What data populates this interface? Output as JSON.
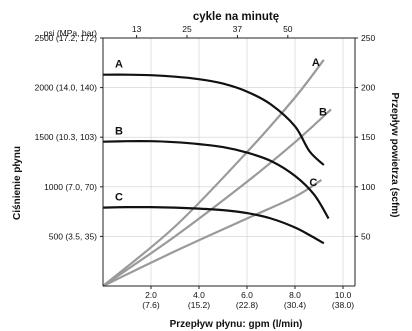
{
  "chart_data": {
    "type": "line",
    "top_axis_title": "cykle na minutę",
    "left_axis_unit": "psi (MPa, bar)",
    "left_axis_title": "Ciśnienie płynu",
    "right_axis_title": "Przepływ powietrza (scfm)",
    "bottom_axis_title": "Przepływ płynu: gpm (l/min)",
    "xlim": [
      0,
      10.5
    ],
    "ylim": [
      0,
      2500
    ],
    "y2lim": [
      0,
      250
    ],
    "y_ticks": [
      {
        "value": 500,
        "label": "500 (3.5, 35)"
      },
      {
        "value": 1000,
        "label": "1000 (7.0, 70)"
      },
      {
        "value": 1500,
        "label": "1500 (10.3, 103)"
      },
      {
        "value": 2000,
        "label": "2000 (14.0, 140)"
      },
      {
        "value": 2500,
        "label": "2500 (17.2, 172)"
      }
    ],
    "y2_ticks": [
      {
        "value": 50,
        "label": "50"
      },
      {
        "value": 100,
        "label": "100"
      },
      {
        "value": 150,
        "label": "150"
      },
      {
        "value": 200,
        "label": "200"
      },
      {
        "value": 250,
        "label": "250"
      }
    ],
    "x_ticks": [
      {
        "value": 2,
        "line1": "2.0",
        "line2": "(7.6)"
      },
      {
        "value": 4,
        "line1": "4.0",
        "line2": "(15.2)"
      },
      {
        "value": 6,
        "line1": "6.0",
        "line2": "(22.8)"
      },
      {
        "value": 8,
        "line1": "8.0",
        "line2": "(30.4)"
      },
      {
        "value": 10,
        "line1": "10.0",
        "line2": "(38.0)"
      }
    ],
    "top_ticks": [
      {
        "x": 1.4,
        "label": "13"
      },
      {
        "x": 3.5,
        "label": "25"
      },
      {
        "x": 5.6,
        "label": "37"
      },
      {
        "x": 7.7,
        "label": "50"
      }
    ],
    "pressure_series": [
      {
        "label": "A",
        "points": [
          [
            0,
            2130
          ],
          [
            1,
            2130
          ],
          [
            2,
            2125
          ],
          [
            3,
            2110
          ],
          [
            4,
            2085
          ],
          [
            5,
            2040
          ],
          [
            6,
            1960
          ],
          [
            7,
            1830
          ],
          [
            8,
            1610
          ],
          [
            8.6,
            1360
          ],
          [
            9.2,
            1220
          ]
        ]
      },
      {
        "label": "B",
        "points": [
          [
            0,
            1455
          ],
          [
            1,
            1460
          ],
          [
            2,
            1460
          ],
          [
            3,
            1450
          ],
          [
            4,
            1430
          ],
          [
            5,
            1400
          ],
          [
            6,
            1345
          ],
          [
            7,
            1260
          ],
          [
            8,
            1110
          ],
          [
            8.8,
            920
          ],
          [
            9.4,
            680
          ]
        ]
      },
      {
        "label": "C",
        "points": [
          [
            0,
            790
          ],
          [
            1,
            795
          ],
          [
            2,
            795
          ],
          [
            3,
            790
          ],
          [
            4,
            780
          ],
          [
            5,
            765
          ],
          [
            6,
            735
          ],
          [
            7,
            680
          ],
          [
            8,
            590
          ],
          [
            8.7,
            500
          ],
          [
            9.2,
            430
          ]
        ]
      }
    ],
    "air_series": [
      {
        "label": "A",
        "points": [
          [
            0,
            0
          ],
          [
            3,
            60
          ],
          [
            6,
            135
          ],
          [
            8,
            190
          ],
          [
            9.2,
            228
          ]
        ]
      },
      {
        "label": "B",
        "points": [
          [
            0,
            0
          ],
          [
            3,
            50
          ],
          [
            6,
            105
          ],
          [
            8,
            145
          ],
          [
            9.5,
            178
          ]
        ]
      },
      {
        "label": "C",
        "points": [
          [
            0,
            0
          ],
          [
            3,
            35
          ],
          [
            6,
            68
          ],
          [
            8,
            90
          ],
          [
            9.1,
            107
          ]
        ]
      }
    ],
    "colors": {
      "pressure": "#111111",
      "air": "#9a9a9a",
      "axis": "#222222"
    }
  }
}
